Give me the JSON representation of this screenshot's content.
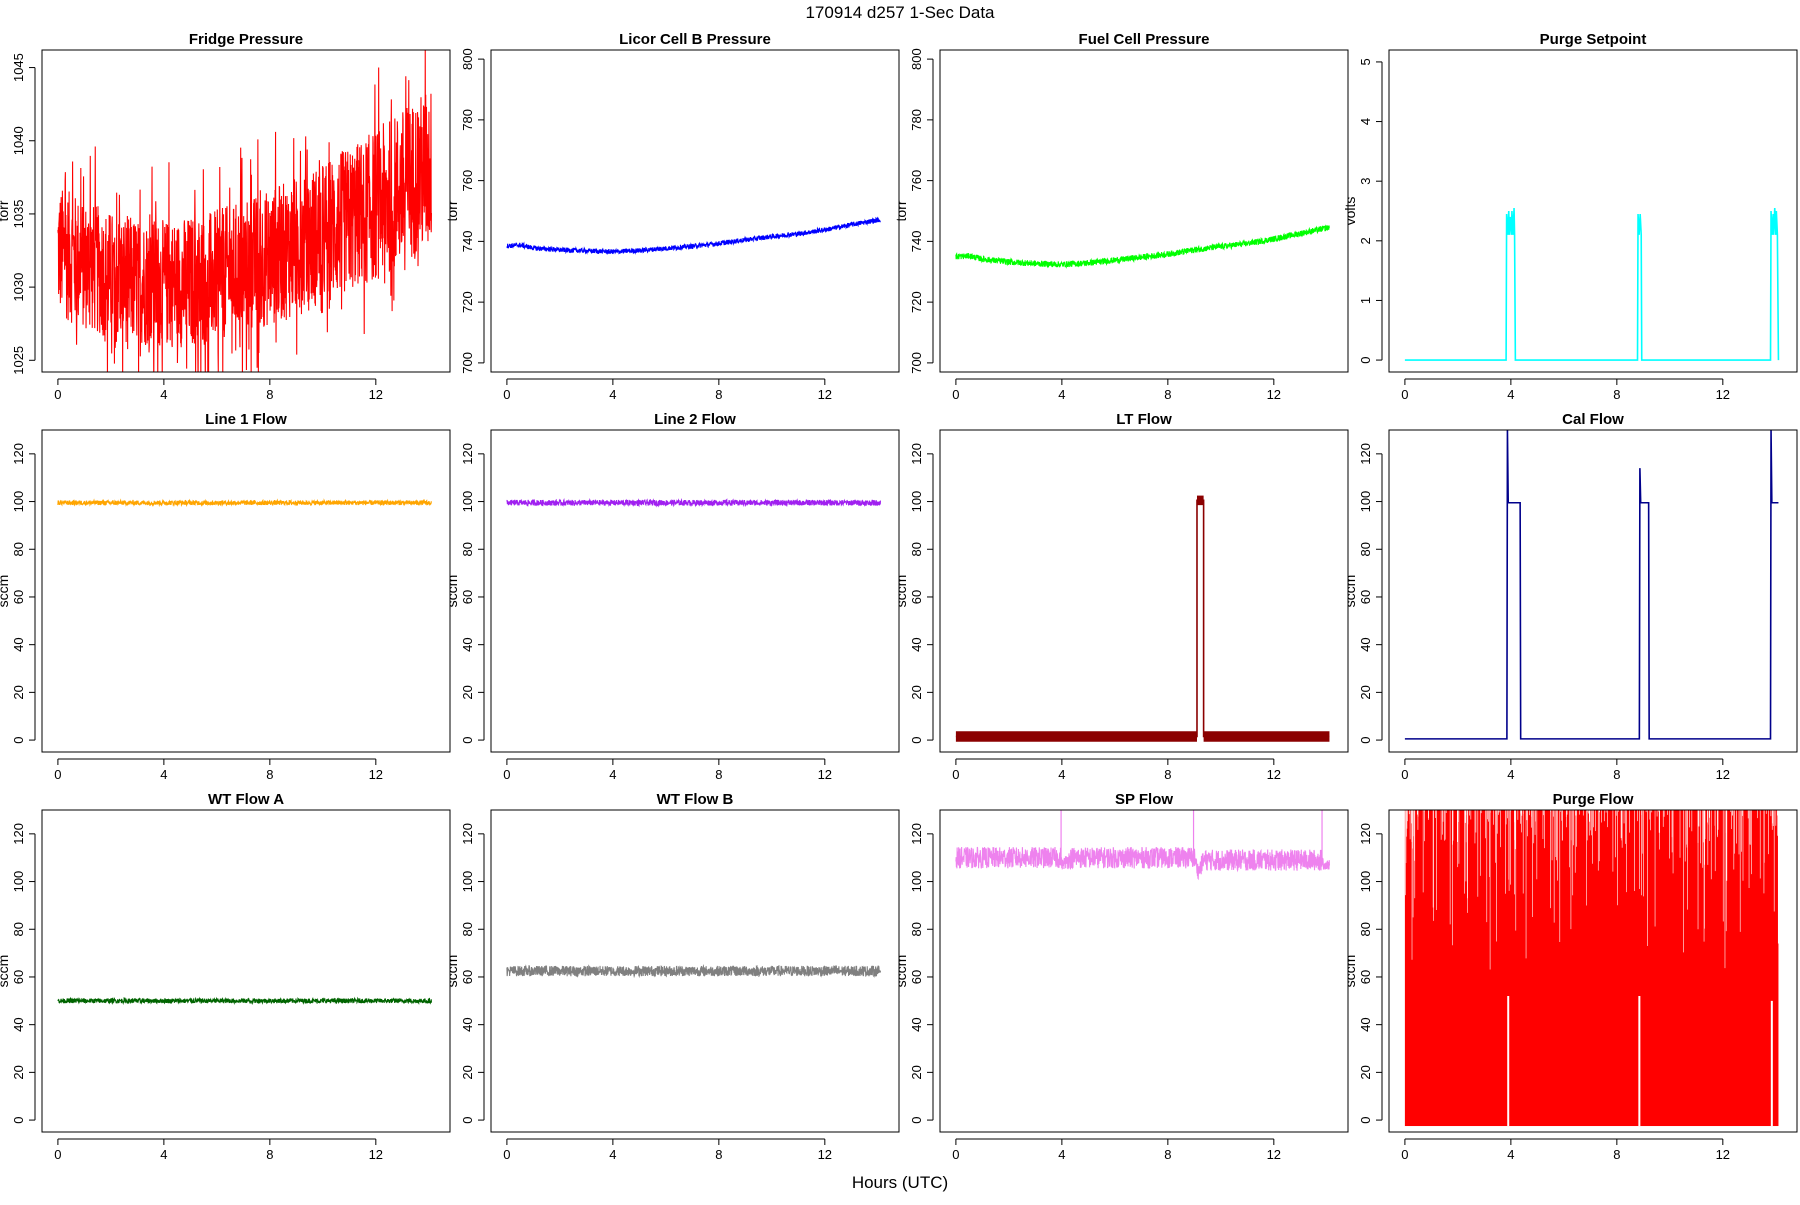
{
  "figure": {
    "title": "170914   d257   1-Sec Data",
    "xlabel": "Hours (UTC)"
  },
  "chart_data": [
    {
      "type": "line",
      "title": "Fridge Pressure",
      "ylabel": "torr",
      "color": "#ff0000",
      "render": "noisy",
      "xlim": [
        -0.6,
        14.8
      ],
      "ylim": [
        1024.2,
        1046.2
      ],
      "yticks": [
        1025,
        1030,
        1035,
        1040,
        1045
      ],
      "xticks": [
        0,
        4,
        8,
        12
      ],
      "x": [
        0,
        1,
        2,
        3,
        4,
        5,
        6,
        7,
        8,
        9,
        10,
        11,
        12,
        13,
        14.1
      ],
      "center": [
        1032.5,
        1031.5,
        1030.8,
        1030.4,
        1030.2,
        1030.4,
        1030.8,
        1031.4,
        1032.0,
        1032.8,
        1033.7,
        1034.6,
        1035.6,
        1036.8,
        1038.2
      ],
      "band": [
        4.5,
        4.5,
        4.4,
        4.4,
        4.4,
        4.5,
        4.5,
        4.6,
        4.7,
        4.8,
        4.9,
        5.0,
        5.2,
        5.4,
        5.6
      ],
      "spike_max": 1045.2,
      "spike_min": 1024.5
    },
    {
      "type": "line",
      "title": "Licor Cell B Pressure",
      "ylabel": "torr",
      "color": "#0000ff",
      "render": "noisy",
      "xlim": [
        -0.6,
        14.8
      ],
      "ylim": [
        697,
        803
      ],
      "yticks": [
        700,
        720,
        740,
        760,
        780,
        800
      ],
      "xticks": [
        0,
        4,
        8,
        12
      ],
      "x": [
        0,
        0.5,
        1,
        2,
        3,
        4,
        5,
        6,
        7,
        8,
        9,
        10,
        11,
        12,
        13,
        14.1
      ],
      "center": [
        738.5,
        738.8,
        737.8,
        737.2,
        736.9,
        736.6,
        737.0,
        737.7,
        738.4,
        739.3,
        740.5,
        741.6,
        742.5,
        743.8,
        745.5,
        747.2
      ],
      "band": [
        0.8,
        0.8,
        0.8,
        0.8,
        0.8,
        0.8,
        0.8,
        0.8,
        0.8,
        0.8,
        0.8,
        0.8,
        0.8,
        0.8,
        0.8,
        0.8
      ]
    },
    {
      "type": "line",
      "title": "Fuel Cell Pressure",
      "ylabel": "torr",
      "color": "#00ff00",
      "render": "noisy",
      "xlim": [
        -0.6,
        14.8
      ],
      "ylim": [
        697,
        803
      ],
      "yticks": [
        700,
        720,
        740,
        760,
        780,
        800
      ],
      "xticks": [
        0,
        4,
        8,
        12
      ],
      "x": [
        0,
        0.5,
        1,
        2,
        3,
        4,
        5,
        6,
        7,
        8,
        9,
        10,
        11,
        12,
        13,
        14.1
      ],
      "center": [
        735.0,
        735.2,
        734.2,
        733.2,
        732.7,
        732.4,
        732.9,
        733.8,
        734.8,
        735.8,
        737.2,
        738.3,
        739.3,
        740.8,
        742.6,
        744.6
      ],
      "band": [
        1.0,
        1.0,
        1.0,
        1.0,
        1.0,
        1.0,
        1.0,
        1.0,
        1.0,
        1.0,
        1.0,
        1.0,
        1.0,
        1.0,
        1.0,
        1.0
      ]
    },
    {
      "type": "line",
      "title": "Purge Setpoint",
      "ylabel": "volts",
      "color": "#00ffff",
      "render": "line",
      "xlim": [
        -0.6,
        14.8
      ],
      "ylim": [
        -0.2,
        5.2
      ],
      "yticks": [
        0,
        1,
        2,
        3,
        4,
        5
      ],
      "xticks": [
        0,
        4,
        8,
        12
      ],
      "x": [
        0,
        3.82,
        3.84,
        3.88,
        3.92,
        3.94,
        3.98,
        4.02,
        4.04,
        4.08,
        4.12,
        4.14,
        4.17,
        8.78,
        8.8,
        8.84,
        8.88,
        8.92,
        8.94,
        13.8,
        13.82,
        13.86,
        13.9,
        13.92,
        13.96,
        14.0,
        14.02,
        14.06,
        14.1
      ],
      "y": [
        0,
        0,
        2.45,
        2.1,
        2.5,
        2.1,
        2.4,
        2.1,
        2.5,
        2.1,
        2.55,
        2.1,
        0,
        0,
        2.45,
        2.1,
        2.45,
        2.1,
        0,
        0,
        2.5,
        2.1,
        2.45,
        2.1,
        2.55,
        2.1,
        2.5,
        2.1,
        0
      ]
    },
    {
      "type": "line",
      "title": "Line 1 Flow",
      "ylabel": "sccm",
      "color": "#ffa500",
      "render": "noisy",
      "xlim": [
        -0.6,
        14.8
      ],
      "ylim": [
        -5,
        130
      ],
      "yticks": [
        0,
        20,
        40,
        60,
        80,
        100,
        120
      ],
      "xticks": [
        0,
        4,
        8,
        12
      ],
      "x": [
        0,
        14.1
      ],
      "center": [
        99.5,
        99.5
      ],
      "band": [
        1.0,
        1.0
      ]
    },
    {
      "type": "line",
      "title": "Line 2 Flow",
      "ylabel": "sccm",
      "color": "#a020f0",
      "render": "noisy",
      "xlim": [
        -0.6,
        14.8
      ],
      "ylim": [
        -5,
        130
      ],
      "yticks": [
        0,
        20,
        40,
        60,
        80,
        100,
        120
      ],
      "xticks": [
        0,
        4,
        8,
        12
      ],
      "x": [
        0,
        14.1
      ],
      "center": [
        99.5,
        99.5
      ],
      "band": [
        1.2,
        1.2
      ]
    },
    {
      "type": "line",
      "title": "LT Flow",
      "ylabel": "sccm",
      "color": "#8b0000",
      "render": "lt",
      "xlim": [
        -0.6,
        14.8
      ],
      "ylim": [
        -5,
        130
      ],
      "yticks": [
        0,
        20,
        40,
        60,
        80,
        100,
        120
      ],
      "xticks": [
        0,
        4,
        8,
        12
      ],
      "x": [
        0,
        9.1,
        9.1,
        9.35,
        9.35,
        14.1
      ],
      "y": [
        1.5,
        1.5,
        100.5,
        100.5,
        1.5,
        1.5
      ],
      "band": 2.2
    },
    {
      "type": "line",
      "title": "Cal Flow",
      "ylabel": "sccm",
      "color": "#00008b",
      "render": "line",
      "xlim": [
        -0.6,
        14.8
      ],
      "ylim": [
        -5,
        130
      ],
      "yticks": [
        0,
        20,
        40,
        60,
        80,
        100,
        120
      ],
      "xticks": [
        0,
        4,
        8,
        12
      ],
      "x": [
        0,
        3.85,
        3.87,
        3.9,
        4.35,
        4.37,
        8.85,
        8.87,
        8.9,
        9.2,
        9.22,
        13.8,
        13.82,
        13.85,
        14.1
      ],
      "y": [
        0.5,
        0.5,
        130,
        99.5,
        99.5,
        0.5,
        0.5,
        114,
        99.5,
        99.5,
        0.5,
        0.5,
        130,
        99.5,
        99.5
      ]
    },
    {
      "type": "line",
      "title": "WT Flow A",
      "ylabel": "sccm",
      "color": "#006400",
      "render": "noisy",
      "xlim": [
        -0.6,
        14.8
      ],
      "ylim": [
        -5,
        130
      ],
      "yticks": [
        0,
        20,
        40,
        60,
        80,
        100,
        120
      ],
      "xticks": [
        0,
        4,
        8,
        12
      ],
      "x": [
        0,
        14.1
      ],
      "center": [
        50,
        50
      ],
      "band": [
        1.0,
        1.0
      ]
    },
    {
      "type": "line",
      "title": "WT Flow B",
      "ylabel": "sccm",
      "color": "#808080",
      "render": "noisy",
      "xlim": [
        -0.6,
        14.8
      ],
      "ylim": [
        -5,
        130
      ],
      "yticks": [
        0,
        20,
        40,
        60,
        80,
        100,
        120
      ],
      "xticks": [
        0,
        4,
        8,
        12
      ],
      "x": [
        0,
        14.1
      ],
      "center": [
        62.5,
        62.5
      ],
      "band": [
        2.2,
        2.2
      ]
    },
    {
      "type": "line",
      "title": "SP Flow",
      "ylabel": "sccm",
      "color": "#ee82ee",
      "render": "noisy",
      "xlim": [
        -0.6,
        14.8
      ],
      "ylim": [
        -5,
        130
      ],
      "yticks": [
        0,
        20,
        40,
        60,
        80,
        100,
        120
      ],
      "xticks": [
        0,
        4,
        8,
        12
      ],
      "x": [
        0,
        3.95,
        4.0,
        4.35,
        9.0,
        9.15,
        9.35,
        13.8,
        13.9,
        14.1
      ],
      "center": [
        110,
        110,
        107,
        110,
        110,
        104,
        109,
        109,
        107,
        107
      ],
      "band": [
        4.5,
        4.5,
        2.0,
        4.5,
        4.5,
        3.0,
        4.5,
        4.5,
        2.0,
        2.0
      ],
      "spikes": [
        {
          "x": 3.97,
          "y": 130
        },
        {
          "x": 8.97,
          "y": 130
        },
        {
          "x": 13.82,
          "y": 130
        }
      ]
    },
    {
      "type": "line",
      "title": "Purge Flow",
      "ylabel": "sccm",
      "color": "#ff0000",
      "render": "purge",
      "xlim": [
        -0.6,
        14.8
      ],
      "ylim": [
        -5,
        130
      ],
      "yticks": [
        0,
        20,
        40,
        60,
        80,
        100,
        120
      ],
      "xticks": [
        0,
        4,
        8,
        12
      ],
      "x": [
        0,
        14.1
      ],
      "ymin": -2.5,
      "ymax": 130,
      "dips": [
        {
          "x": 3.9,
          "y": 52
        },
        {
          "x": 8.85,
          "y": 52
        },
        {
          "x": 13.85,
          "y": 50
        }
      ]
    }
  ]
}
